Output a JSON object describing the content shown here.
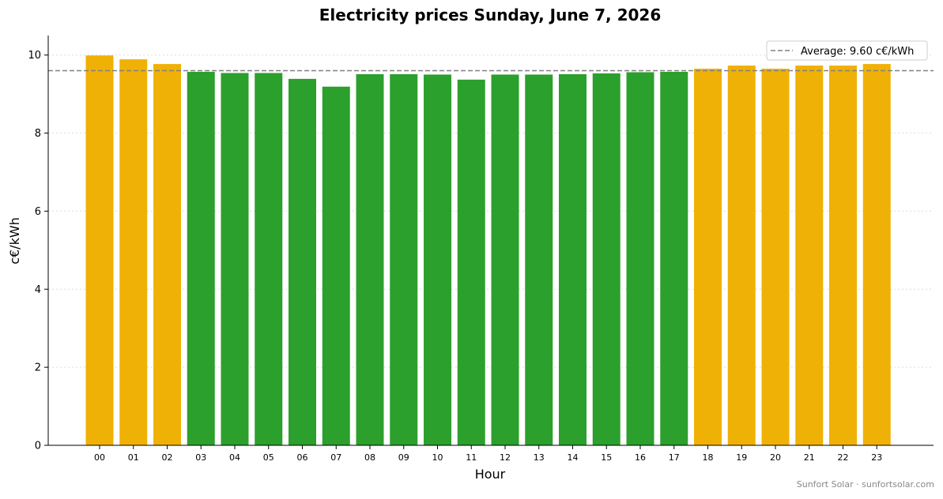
{
  "chart_data": {
    "type": "bar",
    "title": "Electricity prices Sunday, June 7, 2026",
    "xlabel": "Hour",
    "ylabel": "c€/kWh",
    "categories": [
      "00",
      "01",
      "02",
      "03",
      "04",
      "05",
      "06",
      "07",
      "08",
      "09",
      "10",
      "11",
      "12",
      "13",
      "14",
      "15",
      "16",
      "17",
      "18",
      "19",
      "20",
      "21",
      "22",
      "23"
    ],
    "values": [
      9.99,
      9.89,
      9.77,
      9.57,
      9.54,
      9.54,
      9.39,
      9.19,
      9.51,
      9.51,
      9.5,
      9.37,
      9.5,
      9.5,
      9.51,
      9.53,
      9.56,
      9.57,
      9.65,
      9.73,
      9.65,
      9.73,
      9.73,
      9.77
    ],
    "average": 9.6,
    "average_label": "Average: 9.60 c€/kWh",
    "ylim": [
      0,
      10.5
    ],
    "yticks": [
      "0",
      "2",
      "4",
      "6",
      "8",
      "10"
    ],
    "grid": "horizontal dotted",
    "legend_position": "top-right",
    "colors": {
      "above_average": "#f0b106",
      "below_average": "#2ca02c",
      "average_line": "#808080"
    },
    "footer": "Sunfort Solar · sunfortsolar.com"
  }
}
